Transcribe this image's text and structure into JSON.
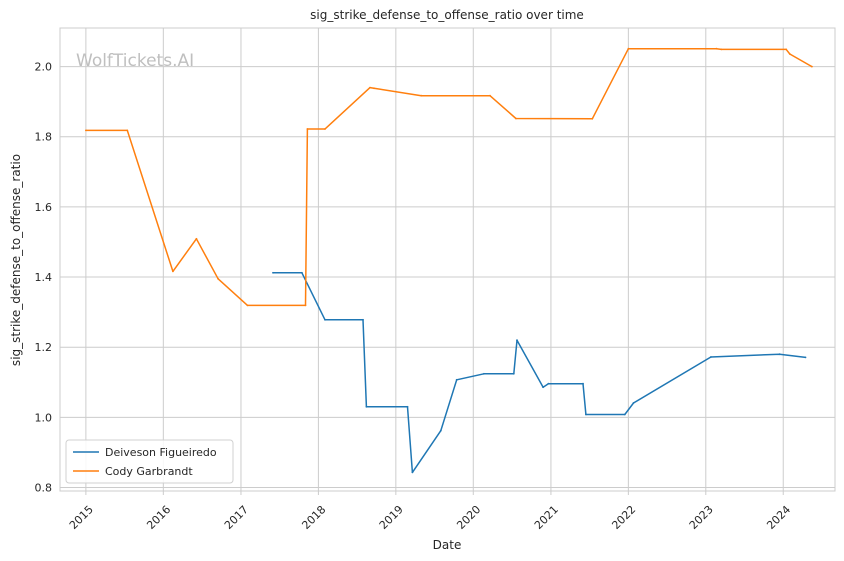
{
  "watermark": "WolfTickets.AI",
  "chart_data": {
    "type": "line",
    "title": "sig_strike_defense_to_offense_ratio over time",
    "xlabel": "Date",
    "ylabel": "sig_strike_defense_to_offense_ratio",
    "x_ticks": [
      "2015",
      "2016",
      "2017",
      "2018",
      "2019",
      "2020",
      "2021",
      "2022",
      "2023",
      "2024"
    ],
    "y_ticks": [
      "0.8",
      "1.0",
      "1.2",
      "1.4",
      "1.6",
      "1.8",
      "2.0"
    ],
    "xlim": [
      "2014-09-01",
      "2024-09-01"
    ],
    "ylim": [
      0.79,
      2.11
    ],
    "grid": true,
    "legend_position": "lower-left",
    "series": [
      {
        "name": "Deiveson Figueiredo",
        "color": "#1f77b4",
        "points": [
          [
            "2017-06-01",
            1.412
          ],
          [
            "2017-10-15",
            1.412
          ],
          [
            "2018-02-01",
            1.278
          ],
          [
            "2018-07-30",
            1.278
          ],
          [
            "2018-08-15",
            1.03
          ],
          [
            "2019-02-25",
            1.03
          ],
          [
            "2019-03-20",
            0.843
          ],
          [
            "2019-08-01",
            0.962
          ],
          [
            "2019-10-15",
            1.107
          ],
          [
            "2020-02-20",
            1.124
          ],
          [
            "2020-07-10",
            1.124
          ],
          [
            "2020-07-25",
            1.22
          ],
          [
            "2020-11-25",
            1.086
          ],
          [
            "2020-12-20",
            1.096
          ],
          [
            "2021-06-01",
            1.096
          ],
          [
            "2021-06-15",
            1.008
          ],
          [
            "2021-12-15",
            1.008
          ],
          [
            "2022-01-25",
            1.041
          ],
          [
            "2023-01-25",
            1.172
          ],
          [
            "2023-12-15",
            1.18
          ],
          [
            "2024-04-15",
            1.171
          ]
        ]
      },
      {
        "name": "Cody Garbrandt",
        "color": "#ff7f0e",
        "points": [
          [
            "2015-01-01",
            1.818
          ],
          [
            "2015-07-15",
            1.818
          ],
          [
            "2016-02-15",
            1.416
          ],
          [
            "2016-06-05",
            1.509
          ],
          [
            "2016-09-15",
            1.395
          ],
          [
            "2017-02-01",
            1.319
          ],
          [
            "2017-11-01",
            1.319
          ],
          [
            "2017-11-10",
            1.822
          ],
          [
            "2018-02-01",
            1.822
          ],
          [
            "2018-09-01",
            1.94
          ],
          [
            "2018-09-20",
            1.938
          ],
          [
            "2019-05-01",
            1.917
          ],
          [
            "2020-03-20",
            1.917
          ],
          [
            "2020-07-20",
            1.852
          ],
          [
            "2021-07-15",
            1.851
          ],
          [
            "2022-01-01",
            2.051
          ],
          [
            "2023-02-20",
            2.051
          ],
          [
            "2023-03-15",
            2.049
          ],
          [
            "2024-01-15",
            2.049
          ],
          [
            "2024-02-01",
            2.036
          ],
          [
            "2024-05-15",
            2.0
          ]
        ]
      }
    ]
  }
}
